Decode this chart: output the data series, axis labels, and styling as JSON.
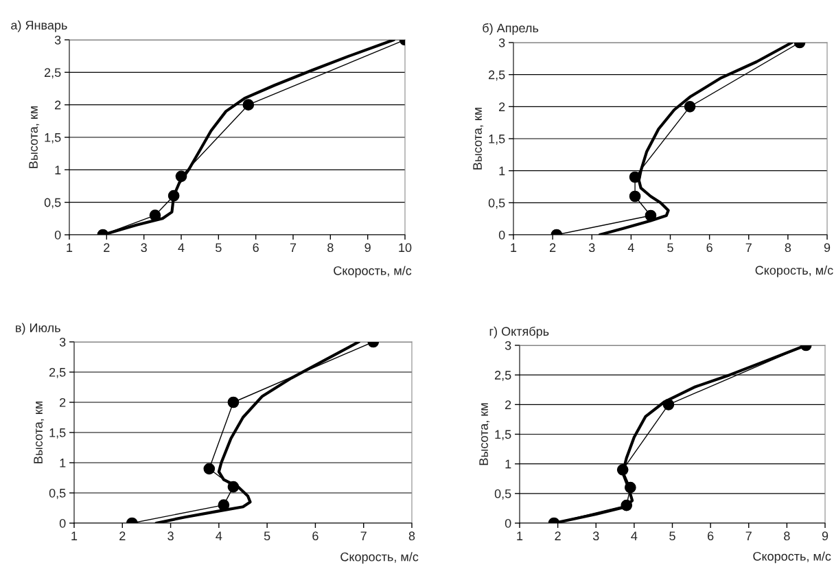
{
  "chart_data": [
    {
      "type": "line",
      "title": "а) Январь",
      "xlabel": "Скорость, м/с",
      "ylabel": "Высота, км",
      "xlim": [
        1,
        10
      ],
      "xticks": [
        1,
        2,
        3,
        4,
        5,
        6,
        7,
        8,
        9,
        10
      ],
      "ylim": [
        0,
        3
      ],
      "yticks": [
        0,
        {
          "value": 0.5,
          "label": "0,5"
        },
        1,
        {
          "value": 1.5,
          "label": "1,5"
        },
        2,
        {
          "value": 2.5,
          "label": "2,5"
        },
        3
      ],
      "grid": "y",
      "series": [
        {
          "color": "#000000",
          "marker": "circle",
          "x": [
            1.9,
            3.3,
            3.8,
            4.0,
            5.8,
            10.0
          ],
          "values": [
            0,
            0.3,
            0.6,
            0.9,
            2,
            3
          ]
        },
        {
          "color": "#000000",
          "marker": "none",
          "x": [
            1.9,
            2.8,
            3.5,
            3.75,
            3.8,
            3.95,
            4.2,
            4.5,
            4.8,
            5.2,
            5.7,
            6.5,
            7.5,
            8.5,
            9.7
          ],
          "values": [
            0,
            0.15,
            0.25,
            0.35,
            0.6,
            0.8,
            1.0,
            1.3,
            1.6,
            1.9,
            2.1,
            2.3,
            2.53,
            2.75,
            3.0
          ]
        }
      ]
    },
    {
      "type": "line",
      "title": "б) Апрель",
      "xlabel": "Скорость, м/с",
      "ylabel": "Высота, км",
      "xlim": [
        1,
        9
      ],
      "xticks": [
        1,
        2,
        3,
        4,
        5,
        6,
        7,
        8,
        9
      ],
      "ylim": [
        0,
        3
      ],
      "yticks": [
        0,
        {
          "value": 0.5,
          "label": "0,5"
        },
        1,
        {
          "value": 1.5,
          "label": "1,5"
        },
        2,
        {
          "value": 2.5,
          "label": "2,5"
        },
        3
      ],
      "grid": "y",
      "series": [
        {
          "color": "#000000",
          "marker": "circle",
          "x": [
            2.1,
            4.5,
            4.1,
            4.1,
            5.5,
            8.3
          ],
          "values": [
            0,
            0.3,
            0.6,
            0.9,
            2,
            3
          ]
        },
        {
          "color": "#000000",
          "marker": "none",
          "x": [
            3.2,
            3.8,
            4.5,
            4.9,
            4.95,
            4.75,
            4.5,
            4.25,
            4.2,
            4.25,
            4.4,
            4.7,
            5.1,
            5.5,
            6.3,
            7.2,
            8.1
          ],
          "values": [
            0,
            0.1,
            0.22,
            0.3,
            0.38,
            0.5,
            0.6,
            0.73,
            0.85,
            1.0,
            1.3,
            1.65,
            1.95,
            2.15,
            2.45,
            2.7,
            3.0
          ]
        }
      ]
    },
    {
      "type": "line",
      "title": "в) Июль",
      "xlabel": "Скорость, м/с",
      "ylabel": "Высота, км",
      "xlim": [
        1,
        8
      ],
      "xticks": [
        1,
        2,
        3,
        4,
        5,
        6,
        7,
        8
      ],
      "ylim": [
        0,
        3
      ],
      "yticks": [
        0,
        {
          "value": 0.5,
          "label": "0,5"
        },
        1,
        {
          "value": 1.5,
          "label": "1,5"
        },
        2,
        {
          "value": 2.5,
          "label": "2,5"
        },
        3
      ],
      "grid": "y",
      "series": [
        {
          "color": "#000000",
          "marker": "circle",
          "x": [
            2.2,
            4.1,
            4.3,
            3.8,
            4.3,
            7.2
          ],
          "values": [
            0,
            0.3,
            0.6,
            0.9,
            2,
            3
          ]
        },
        {
          "color": "#000000",
          "marker": "none",
          "x": [
            2.7,
            3.3,
            4.0,
            4.5,
            4.65,
            4.6,
            4.4,
            4.1,
            4.0,
            4.05,
            4.25,
            4.5,
            4.9,
            5.5,
            6.2,
            6.9
          ],
          "values": [
            0,
            0.1,
            0.2,
            0.27,
            0.35,
            0.45,
            0.6,
            0.72,
            0.85,
            1.0,
            1.4,
            1.75,
            2.1,
            2.4,
            2.7,
            3.0
          ]
        }
      ]
    },
    {
      "type": "line",
      "title": "г) Октябрь",
      "xlabel": "Скорость, м/с",
      "ylabel": "Высота, км",
      "xlim": [
        1,
        9
      ],
      "xticks": [
        1,
        2,
        3,
        4,
        5,
        6,
        7,
        8,
        9
      ],
      "ylim": [
        0,
        3
      ],
      "yticks": [
        0,
        {
          "value": 0.5,
          "label": "0,5"
        },
        1,
        {
          "value": 1.5,
          "label": "1,5"
        },
        2,
        {
          "value": 2.5,
          "label": "2,5"
        },
        3
      ],
      "grid": "y",
      "series": [
        {
          "color": "#000000",
          "marker": "circle",
          "x": [
            1.9,
            3.8,
            3.9,
            3.7,
            4.9,
            8.5
          ],
          "values": [
            0,
            0.3,
            0.6,
            0.9,
            2,
            3
          ]
        },
        {
          "color": "#000000",
          "marker": "none",
          "x": [
            1.9,
            3.0,
            3.75,
            3.95,
            3.85,
            3.7,
            3.8,
            4.0,
            4.3,
            4.8,
            5.6,
            6.5,
            7.5,
            8.5
          ],
          "values": [
            0,
            0.15,
            0.27,
            0.38,
            0.6,
            0.85,
            1.1,
            1.45,
            1.8,
            2.05,
            2.3,
            2.5,
            2.75,
            3.0
          ]
        }
      ]
    }
  ]
}
